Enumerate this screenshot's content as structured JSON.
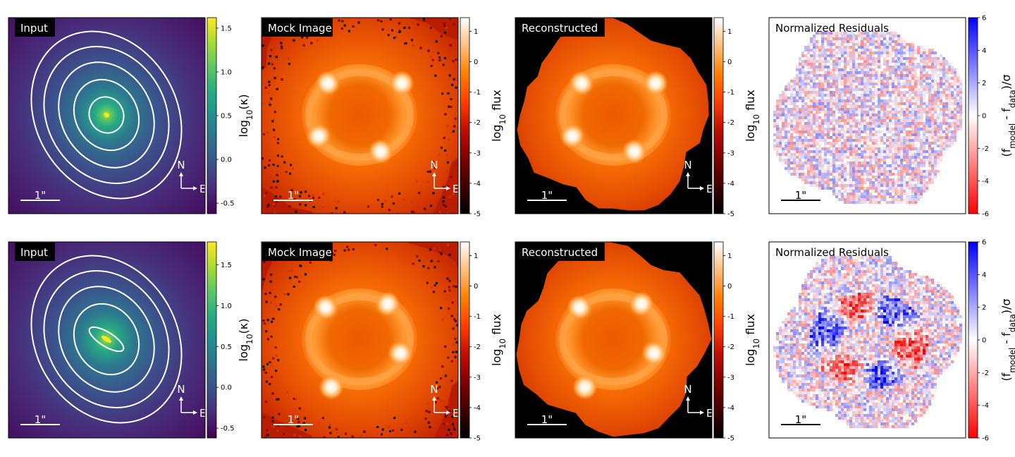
{
  "chart_data": {
    "type": "heatmap",
    "rows": [
      {
        "panels": [
          {
            "kind": "convergence",
            "label": "Input",
            "colormap": "viridis",
            "colorbar_label": "log$_{10}$($\\kappa$)",
            "colorbar_ticks": [
              1.5,
              1.0,
              0.5,
              0.0,
              -0.5
            ],
            "colorbar_range": [
              -0.62,
              1.62
            ],
            "contour_count": 5,
            "core_axis_ratio": 0.8,
            "scale_bar": "1\"",
            "compass": {
              "north": "N",
              "east": "E"
            }
          },
          {
            "kind": "image",
            "label": "Mock Image",
            "colormap": "gist_heat",
            "colorbar_label": "log$_{10}$ flux",
            "colorbar_ticks": [
              1,
              0,
              -1,
              -2,
              -3,
              -4,
              -5
            ],
            "colorbar_range": [
              -5,
              1.45
            ],
            "scale_bar": "1\"",
            "compass": {
              "north": "N",
              "east": "E"
            }
          },
          {
            "kind": "reconstructed",
            "label": "Reconstructed",
            "colormap": "gist_heat",
            "colorbar_label": "log$_{10}$ flux",
            "colorbar_ticks": [
              1,
              0,
              -1,
              -2,
              -3,
              -4,
              -5
            ],
            "colorbar_range": [
              -5,
              1.45
            ],
            "scale_bar": "1\"",
            "compass": {
              "north": "N",
              "east": "E"
            }
          },
          {
            "kind": "residuals",
            "label": "Normalized Residuals",
            "colormap": "bwr",
            "colorbar_label": "(f$_{model}$ - f$_{data}$)/$\\sigma$",
            "colorbar_ticks": [
              6,
              4,
              2,
              0,
              -2,
              -4,
              -6
            ],
            "colorbar_range": [
              -6,
              6
            ],
            "scale_bar": "1\""
          }
        ]
      },
      {
        "panels": [
          {
            "kind": "convergence",
            "label": "Input",
            "colormap": "viridis",
            "colorbar_label": "log$_{10}$($\\kappa$)",
            "colorbar_ticks": [
              1.5,
              1.0,
              0.5,
              0.0,
              -0.5
            ],
            "colorbar_range": [
              -0.62,
              1.78
            ],
            "contour_count": 5,
            "core_axis_ratio": 0.35,
            "scale_bar": "1\"",
            "compass": {
              "north": "N",
              "east": "E"
            }
          },
          {
            "kind": "image",
            "label": "Mock Image",
            "colormap": "gist_heat",
            "colorbar_label": "log$_{10}$ flux",
            "colorbar_ticks": [
              1,
              0,
              -1,
              -2,
              -3,
              -4,
              -5
            ],
            "colorbar_range": [
              -5,
              1.45
            ],
            "scale_bar": "1\"",
            "compass": {
              "north": "N",
              "east": "E"
            }
          },
          {
            "kind": "reconstructed",
            "label": "Reconstructed",
            "colormap": "gist_heat",
            "colorbar_label": "log$_{10}$ flux",
            "colorbar_ticks": [
              1,
              0,
              -1,
              -2,
              -3,
              -4,
              -5
            ],
            "colorbar_range": [
              -5,
              1.45
            ],
            "scale_bar": "1\"",
            "compass": {
              "north": "N",
              "east": "E"
            }
          },
          {
            "kind": "residuals",
            "label": "Normalized Residuals",
            "colormap": "bwr",
            "colorbar_label": "(f$_{model}$ - f$_{data}$)/$\\sigma$",
            "colorbar_ticks": [
              6,
              4,
              2,
              0,
              -2,
              -4,
              -6
            ],
            "colorbar_range": [
              -6,
              6
            ],
            "scale_bar": "1\""
          }
        ]
      }
    ]
  }
}
